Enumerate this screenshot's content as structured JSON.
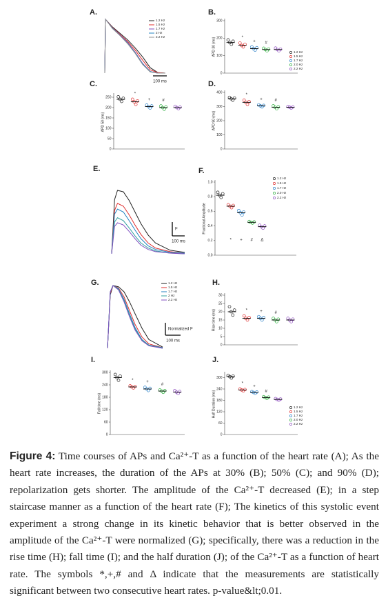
{
  "chart_data": [
    {
      "type": "line",
      "label": "A.",
      "scale_x_label": "100 ms",
      "x": [
        0,
        5,
        50,
        100,
        150,
        200,
        250,
        300,
        350,
        400
      ],
      "series": [
        {
          "name": "1.2 Hz",
          "color": "#222222",
          "values": [
            0,
            1,
            0.86,
            0.74,
            0.62,
            0.47,
            0.3,
            0.1,
            0.01,
            0
          ]
        },
        {
          "name": "1.5 Hz",
          "color": "#e03030",
          "values": [
            0,
            1,
            0.85,
            0.72,
            0.59,
            0.43,
            0.24,
            0.06,
            0.01,
            0
          ]
        },
        {
          "name": "1.7 Hz",
          "color": "#8050c0",
          "values": [
            0,
            1,
            0.84,
            0.71,
            0.57,
            0.39,
            0.18,
            0.03,
            0,
            0
          ]
        },
        {
          "name": "2 Hz",
          "color": "#2080c0",
          "values": [
            0,
            1,
            0.84,
            0.7,
            0.56,
            0.38,
            0.17,
            0.03,
            0,
            0
          ]
        },
        {
          "name": "2.2 Hz",
          "color": "#909090",
          "values": [
            0,
            1,
            0.83,
            0.7,
            0.55,
            0.37,
            0.16,
            0.02,
            0,
            0
          ]
        }
      ]
    },
    {
      "type": "dots",
      "label": "B.",
      "y_label": "APD 30 (ms)",
      "ylim": [
        0,
        300
      ],
      "yticks": [
        0,
        100,
        200,
        300
      ],
      "groups": [
        {
          "name": "1.2 Hz",
          "color": "#222222",
          "points": [
            190,
            175,
            165,
            182
          ],
          "mean": 175
        },
        {
          "name": "1.5 Hz",
          "color": "#e03030",
          "points": [
            172,
            158,
            150,
            165
          ],
          "mean": 160,
          "symbol": "*"
        },
        {
          "name": "1.7 Hz",
          "color": "#2a80c8",
          "points": [
            150,
            140,
            132,
            145
          ],
          "mean": 140,
          "symbol": "+"
        },
        {
          "name": "2.0 Hz",
          "color": "#30b040",
          "points": [
            142,
            135,
            128,
            138
          ],
          "mean": 135,
          "symbol": "#"
        },
        {
          "name": "2.2 Hz",
          "color": "#9050c0",
          "points": [
            143,
            135,
            128,
            137
          ],
          "mean": 135
        }
      ]
    },
    {
      "type": "dots",
      "label": "C.",
      "y_label": "APD 50 (ms)",
      "ylim": [
        0,
        260
      ],
      "yticks": [
        0,
        50,
        100,
        150,
        200,
        250
      ],
      "groups": [
        {
          "color": "#222222",
          "points": [
            252,
            240,
            230,
            245
          ],
          "mean": 240
        },
        {
          "color": "#e03030",
          "points": [
            240,
            228,
            215,
            232
          ],
          "mean": 228,
          "symbol": "*"
        },
        {
          "color": "#2a80c8",
          "points": [
            212,
            205,
            198,
            208
          ],
          "mean": 205,
          "symbol": "+"
        },
        {
          "color": "#30b040",
          "points": [
            208,
            200,
            192,
            203
          ],
          "mean": 200,
          "symbol": "#"
        },
        {
          "color": "#9050c0",
          "points": [
            206,
            200,
            195,
            202
          ],
          "mean": 200
        }
      ]
    },
    {
      "type": "dots",
      "label": "D.",
      "y_label": "APD 90 (ms)",
      "ylim": [
        0,
        400
      ],
      "yticks": [
        0,
        100,
        200,
        300,
        400
      ],
      "groups": [
        {
          "color": "#222222",
          "points": [
            365,
            355,
            345,
            360
          ],
          "mean": 355
        },
        {
          "color": "#e03030",
          "points": [
            345,
            330,
            315,
            335
          ],
          "mean": 330,
          "symbol": "*"
        },
        {
          "color": "#2a80c8",
          "points": [
            312,
            305,
            298,
            308
          ],
          "mean": 305,
          "symbol": "+"
        },
        {
          "color": "#30b040",
          "points": [
            305,
            295,
            285,
            298
          ],
          "mean": 295,
          "symbol": "#"
        },
        {
          "color": "#9050c0",
          "points": [
            300,
            295,
            290,
            297
          ],
          "mean": 295
        }
      ]
    },
    {
      "type": "line",
      "label": "E.",
      "scale_x_label": "100 ms",
      "scale_y_label": "F",
      "x": [
        0,
        20,
        40,
        80,
        120,
        160,
        200,
        250,
        300,
        400,
        500
      ],
      "series": [
        {
          "color": "#222222",
          "values": [
            0,
            0.75,
            0.88,
            0.86,
            0.74,
            0.58,
            0.42,
            0.26,
            0.15,
            0.05,
            0.02
          ]
        },
        {
          "color": "#e03030",
          "values": [
            0,
            0.6,
            0.7,
            0.66,
            0.54,
            0.4,
            0.27,
            0.15,
            0.08,
            0.03,
            0.01
          ]
        },
        {
          "color": "#2080c0",
          "values": [
            0,
            0.55,
            0.62,
            0.58,
            0.46,
            0.33,
            0.21,
            0.11,
            0.06,
            0.02,
            0.01
          ]
        },
        {
          "color": "#30a0a0",
          "values": [
            0,
            0.44,
            0.5,
            0.46,
            0.36,
            0.25,
            0.15,
            0.08,
            0.04,
            0.01,
            0
          ]
        },
        {
          "color": "#8050c0",
          "values": [
            0,
            0.38,
            0.43,
            0.4,
            0.31,
            0.21,
            0.12,
            0.06,
            0.03,
            0.01,
            0
          ]
        }
      ]
    },
    {
      "type": "dots",
      "label": "F.",
      "y_label": "Fractional Amplitude",
      "ylim": [
        0,
        1
      ],
      "yticks": [
        {
          "value": 0,
          "label": "0.0"
        },
        0.2,
        0.4,
        0.6,
        0.8,
        {
          "value": 1,
          "label": "1.0"
        }
      ],
      "symbols_below": true,
      "groups": [
        {
          "name": "1.2 Hz",
          "color": "#222222",
          "points": [
            0.86,
            0.82,
            0.79,
            0.84
          ],
          "mean": 0.82
        },
        {
          "name": "1.5 Hz",
          "color": "#e03030",
          "points": [
            0.69,
            0.67,
            0.65,
            0.68
          ],
          "mean": 0.67,
          "symbol": "*"
        },
        {
          "name": "1.7 Hz",
          "color": "#2a80c8",
          "points": [
            0.61,
            0.58,
            0.55,
            0.59
          ],
          "mean": 0.58,
          "symbol": "+"
        },
        {
          "name": "2.0 Hz",
          "color": "#30b040",
          "points": [
            0.46,
            0.45,
            0.44,
            0.455
          ],
          "mean": 0.45,
          "symbol": "#"
        },
        {
          "name": "2.2 Hz",
          "color": "#9050c0",
          "points": [
            0.41,
            0.39,
            0.37,
            0.4
          ],
          "mean": 0.39,
          "symbol": "Δ"
        }
      ]
    },
    {
      "type": "line",
      "label": "G.",
      "scale_x_label": "100 ms",
      "scale_y_label": "Normalized F",
      "x": [
        0,
        20,
        40,
        80,
        120,
        160,
        200,
        250,
        300,
        400
      ],
      "series": [
        {
          "name": "1.2 Hz",
          "color": "#222222",
          "values": [
            0,
            0.85,
            1,
            0.98,
            0.9,
            0.74,
            0.55,
            0.32,
            0.14,
            0.02
          ]
        },
        {
          "name": "1.5 Hz",
          "color": "#e03030",
          "values": [
            0,
            0.88,
            1,
            0.96,
            0.82,
            0.6,
            0.38,
            0.18,
            0.07,
            0.01
          ]
        },
        {
          "name": "1.7 Hz",
          "color": "#2080c0",
          "values": [
            0,
            0.9,
            1,
            0.95,
            0.78,
            0.55,
            0.33,
            0.14,
            0.05,
            0.01
          ]
        },
        {
          "name": "2 Hz",
          "color": "#30a0a0",
          "values": [
            0,
            0.9,
            1,
            0.94,
            0.76,
            0.53,
            0.31,
            0.13,
            0.05,
            0
          ]
        },
        {
          "name": "2.2 Hz",
          "color": "#8050c0",
          "values": [
            0,
            0.9,
            1,
            0.93,
            0.74,
            0.5,
            0.29,
            0.12,
            0.04,
            0
          ]
        }
      ]
    },
    {
      "type": "dots",
      "label": "H.",
      "y_label": "Rise time (ms)",
      "ylim": [
        0,
        30
      ],
      "yticks": [
        0,
        5,
        10,
        15,
        20,
        25,
        30
      ],
      "groups": [
        {
          "color": "#222222",
          "points": [
            23,
            20,
            18,
            21
          ],
          "mean": 20
        },
        {
          "color": "#e03030",
          "points": [
            17.5,
            16,
            15,
            16.5
          ],
          "mean": 16,
          "symbol": "*"
        },
        {
          "color": "#2a80c8",
          "points": [
            17,
            16,
            15,
            16.5
          ],
          "mean": 16,
          "symbol": "+"
        },
        {
          "color": "#30b040",
          "points": [
            16,
            15,
            14,
            15.5
          ],
          "mean": 15,
          "symbol": "#"
        },
        {
          "color": "#9050c0",
          "points": [
            16,
            15,
            14,
            15.5
          ],
          "mean": 15
        }
      ]
    },
    {
      "type": "dots",
      "label": "I.",
      "y_label": "Fall time (ms)",
      "ylim": [
        0,
        300
      ],
      "yticks": [
        0,
        60,
        120,
        180,
        240,
        300
      ],
      "groups": [
        {
          "color": "#222222",
          "points": [
            290,
            275,
            262,
            282
          ],
          "mean": 275
        },
        {
          "color": "#e03030",
          "points": [
            235,
            230,
            225,
            232
          ],
          "mean": 230,
          "symbol": "*"
        },
        {
          "color": "#2a80c8",
          "points": [
            228,
            220,
            213,
            223
          ],
          "mean": 220,
          "symbol": "+"
        },
        {
          "color": "#30b040",
          "points": [
            215,
            210,
            204,
            212
          ],
          "mean": 210,
          "symbol": "#"
        },
        {
          "color": "#9050c0",
          "points": [
            212,
            205,
            198,
            208
          ],
          "mean": 205
        }
      ]
    },
    {
      "type": "dots",
      "label": "J.",
      "y_label": "Half Duration (ms)",
      "ylim": [
        0,
        320
      ],
      "yticks": [
        0,
        60,
        120,
        180,
        240,
        300
      ],
      "groups": [
        {
          "name": "1.2 Hz",
          "color": "#222222",
          "points": [
            312,
            305,
            298,
            308
          ],
          "mean": 305
        },
        {
          "name": "1.5 Hz",
          "color": "#e03030",
          "points": [
            240,
            235,
            230,
            237
          ],
          "mean": 235,
          "symbol": "*"
        },
        {
          "name": "1.7 Hz",
          "color": "#2a80c8",
          "points": [
            226,
            222,
            217,
            224
          ],
          "mean": 222,
          "symbol": "+"
        },
        {
          "name": "2.0 Hz",
          "color": "#30b040",
          "points": [
            199,
            195,
            191,
            197
          ],
          "mean": 195,
          "symbol": "#"
        },
        {
          "name": "2.2 Hz",
          "color": "#9050c0",
          "points": [
            189,
            185,
            181,
            187
          ],
          "mean": 185
        }
      ]
    }
  ],
  "caption": {
    "label": "Figure 4:",
    "text": "Time courses of APs and Ca²⁺-T as a function of the heart rate (A); As the heart rate increases, the duration of the APs at 30% (B); 50% (C); and 90% (D); repolarization gets shorter. The amplitude of the Ca²⁺-T decreased (E); in a step staircase manner as a function of the heart rate (F); The kinetics of this systolic event experiment a strong change in its kinetic behavior that is better observed in the amplitude of the Ca²⁺-T were normalized (G); specifically, there was a reduction in the rise time (H); fall time (I); and the half duration (J); of the Ca²⁺-T as a function of heart rate. The symbols *,+,# and Δ indicate that the measurements are statistically significant between two consecutive heart rates. p-value&lt;0.01."
  }
}
